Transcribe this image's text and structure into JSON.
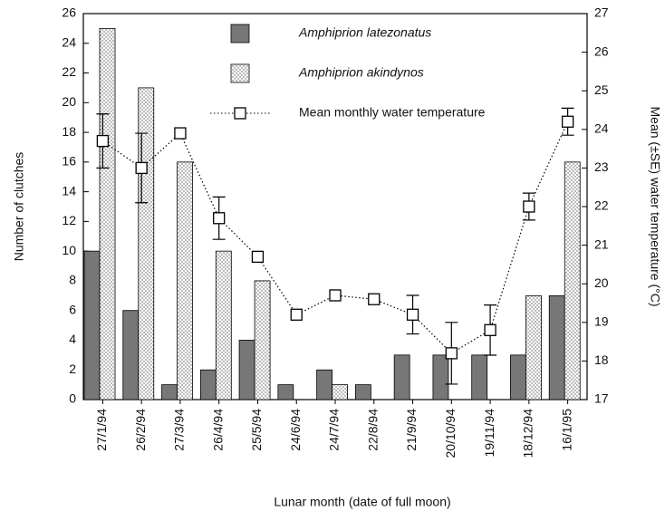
{
  "chart_data": {
    "type": "bar",
    "x_label": "Lunar month (date of full moon)",
    "y_label": "Number of clutches",
    "y2_label": "Mean (±SE) water temperature (°C)",
    "categories": [
      "27/1/94",
      "26/2/94",
      "27/3/94",
      "26/4/94",
      "25/5/94",
      "24/6/94",
      "24/7/94",
      "22/8/94",
      "21/9/94",
      "20/10/94",
      "19/11/94",
      "18/12/94",
      "16/1/95"
    ],
    "series": [
      {
        "name": "Amphiprion latezonatus",
        "type": "bar",
        "color": "#777777",
        "values": [
          10,
          6,
          1,
          2,
          4,
          1,
          2,
          1,
          3,
          3,
          3,
          3,
          7
        ]
      },
      {
        "name": "Amphiprion akindynos",
        "type": "bar",
        "color": "#ffffff",
        "pattern": "dots",
        "values": [
          25,
          21,
          16,
          10,
          8,
          0,
          1,
          0,
          0,
          0,
          0,
          7,
          16
        ]
      },
      {
        "name": "Mean monthly water temperature",
        "type": "line",
        "axis": "y2",
        "color": "#000000",
        "values": [
          23.7,
          23.0,
          23.9,
          21.7,
          20.7,
          19.2,
          19.7,
          19.6,
          19.2,
          18.2,
          18.8,
          22.0,
          24.2
        ],
        "errors": [
          0.7,
          0.9,
          null,
          0.55,
          null,
          null,
          null,
          null,
          0.5,
          0.8,
          0.65,
          0.35,
          0.35
        ]
      }
    ],
    "ylim": [
      0,
      26
    ],
    "yticks": [
      0,
      2,
      4,
      6,
      8,
      10,
      12,
      14,
      16,
      18,
      20,
      22,
      24,
      26
    ],
    "y2lim": [
      17,
      27
    ],
    "y2ticks": [
      17,
      18,
      19,
      20,
      21,
      22,
      23,
      24,
      25,
      26,
      27
    ],
    "grid": false
  }
}
